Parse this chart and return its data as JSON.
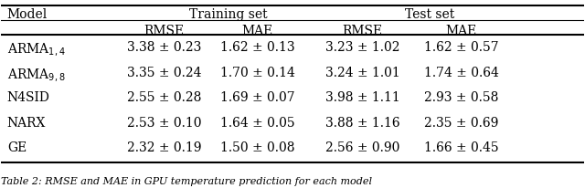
{
  "col_headers_top": [
    "",
    "Training set",
    "",
    "Test set",
    ""
  ],
  "col_headers_mid": [
    "Model",
    "RMSE",
    "MAE",
    "RMSE",
    "MAE"
  ],
  "rows": [
    [
      "ARMA$_{1,4}$",
      "3.38 ± 0.23",
      "1.62 ± 0.13",
      "3.23 ± 1.02",
      "1.62 ± 0.57"
    ],
    [
      "ARMA$_{9,8}$",
      "3.35 ± 0.24",
      "1.70 ± 0.14",
      "3.24 ± 1.01",
      "1.74 ± 0.64"
    ],
    [
      "N4SID",
      "2.55 ± 0.28",
      "1.69 ± 0.07",
      "3.98 ± 1.11",
      "2.93 ± 0.58"
    ],
    [
      "NARX",
      "2.53 ± 0.10",
      "1.64 ± 0.05",
      "3.88 ± 1.16",
      "2.35 ± 0.69"
    ],
    [
      "GE",
      "2.32 ± 0.19",
      "1.50 ± 0.08",
      "2.56 ± 0.90",
      "1.66 ± 0.45"
    ]
  ],
  "caption": "Table 2: RMSE and MAE in GPU temperature prediction for each model",
  "figsize": [
    6.4,
    2.07
  ],
  "dpi": 100
}
